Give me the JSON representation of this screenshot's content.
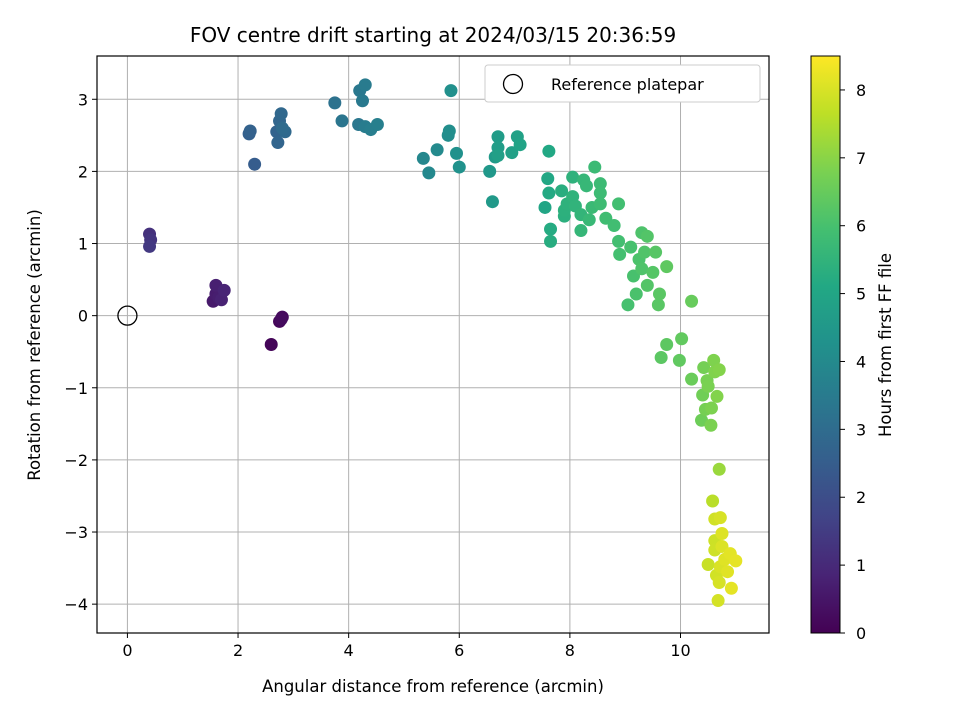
{
  "chart_data": {
    "type": "scatter",
    "title": "FOV centre drift starting at 2024/03/15 20:36:59",
    "xlabel": "Angular distance from reference (arcmin)",
    "ylabel": "Rotation from reference (arcmin)",
    "xlim": [
      -0.55,
      11.6
    ],
    "ylim": [
      -4.4,
      3.6
    ],
    "xticks": [
      0,
      2,
      4,
      6,
      8,
      10
    ],
    "yticks": [
      3,
      2,
      1,
      0,
      -1,
      -2,
      -3,
      -4
    ],
    "xtick_labels": [
      "0",
      "2",
      "4",
      "6",
      "8",
      "10"
    ],
    "ytick_labels": [
      "3",
      "2",
      "1",
      "0",
      "−1",
      "−2",
      "−3",
      "−4"
    ],
    "grid": true,
    "colormap": "viridis",
    "colorbar": {
      "label": "Hours from first FF file",
      "range": [
        0,
        8.5
      ],
      "ticks": [
        0,
        1,
        2,
        3,
        4,
        5,
        6,
        7,
        8
      ],
      "tick_labels": [
        "0",
        "1",
        "2",
        "3",
        "4",
        "5",
        "6",
        "7",
        "8"
      ]
    },
    "legend": {
      "position": "top-right",
      "entries": [
        "Reference platepar"
      ]
    },
    "reference_point": {
      "x": 0,
      "y": 0
    },
    "points": [
      [
        2.6,
        -0.4,
        0.1
      ],
      [
        2.75,
        -0.08,
        0.15
      ],
      [
        2.8,
        -0.02,
        0.2
      ],
      [
        2.78,
        -0.05,
        0.25
      ],
      [
        1.55,
        0.2,
        0.6
      ],
      [
        1.6,
        0.3,
        0.65
      ],
      [
        1.65,
        0.25,
        0.7
      ],
      [
        1.6,
        0.42,
        0.75
      ],
      [
        1.7,
        0.22,
        0.8
      ],
      [
        1.75,
        0.35,
        0.85
      ],
      [
        0.4,
        1.13,
        1.2
      ],
      [
        0.42,
        1.05,
        1.3
      ],
      [
        0.4,
        0.96,
        1.4
      ],
      [
        2.3,
        2.1,
        2.5
      ],
      [
        2.2,
        2.52,
        2.6
      ],
      [
        2.22,
        2.56,
        2.65
      ],
      [
        2.7,
        2.55,
        2.7
      ],
      [
        2.72,
        2.4,
        2.75
      ],
      [
        2.75,
        2.7,
        2.8
      ],
      [
        2.78,
        2.8,
        2.85
      ],
      [
        2.85,
        2.55,
        2.9
      ],
      [
        2.8,
        2.6,
        2.95
      ],
      [
        3.75,
        2.95,
        3.2
      ],
      [
        3.88,
        2.7,
        3.3
      ],
      [
        4.18,
        2.65,
        3.35
      ],
      [
        4.2,
        3.12,
        3.4
      ],
      [
        4.25,
        2.98,
        3.45
      ],
      [
        4.3,
        3.2,
        3.5
      ],
      [
        4.3,
        2.62,
        3.55
      ],
      [
        4.4,
        2.58,
        3.6
      ],
      [
        4.52,
        2.65,
        3.65
      ],
      [
        5.35,
        2.18,
        3.9
      ],
      [
        5.45,
        1.98,
        3.95
      ],
      [
        5.6,
        2.3,
        4.0
      ],
      [
        5.8,
        2.5,
        4.1
      ],
      [
        5.82,
        2.56,
        4.15
      ],
      [
        5.85,
        3.12,
        4.2
      ],
      [
        5.95,
        2.25,
        4.25
      ],
      [
        6.0,
        2.06,
        4.3
      ],
      [
        6.55,
        2.0,
        4.5
      ],
      [
        6.6,
        1.58,
        4.55
      ],
      [
        6.65,
        2.2,
        4.6
      ],
      [
        6.7,
        2.48,
        4.65
      ],
      [
        6.7,
        2.33,
        4.7
      ],
      [
        6.7,
        2.22,
        4.75
      ],
      [
        6.95,
        2.26,
        4.8
      ],
      [
        7.05,
        2.48,
        4.85
      ],
      [
        7.1,
        2.37,
        4.9
      ],
      [
        7.55,
        1.5,
        5.0
      ],
      [
        7.6,
        1.9,
        5.05
      ],
      [
        7.62,
        2.28,
        5.1
      ],
      [
        7.62,
        1.7,
        5.15
      ],
      [
        7.65,
        1.2,
        5.2
      ],
      [
        7.65,
        1.03,
        5.25
      ],
      [
        7.85,
        1.73,
        5.3
      ],
      [
        7.9,
        1.38,
        5.35
      ],
      [
        7.9,
        1.46,
        5.38
      ],
      [
        7.95,
        1.55,
        5.42
      ],
      [
        8.05,
        1.92,
        5.45
      ],
      [
        8.05,
        1.65,
        5.48
      ],
      [
        8.1,
        1.52,
        5.5
      ],
      [
        8.2,
        1.4,
        5.55
      ],
      [
        8.2,
        1.18,
        5.6
      ],
      [
        8.25,
        1.88,
        5.62
      ],
      [
        8.3,
        1.8,
        5.65
      ],
      [
        8.35,
        1.33,
        5.68
      ],
      [
        8.4,
        1.5,
        5.72
      ],
      [
        8.45,
        2.06,
        5.75
      ],
      [
        8.55,
        1.83,
        5.78
      ],
      [
        8.55,
        1.7,
        5.8
      ],
      [
        8.55,
        1.55,
        5.82
      ],
      [
        8.65,
        1.35,
        5.85
      ],
      [
        8.8,
        1.25,
        5.88
      ],
      [
        8.88,
        1.55,
        5.9
      ],
      [
        8.88,
        1.03,
        5.92
      ],
      [
        8.9,
        0.85,
        5.95
      ],
      [
        9.05,
        0.15,
        5.98
      ],
      [
        9.1,
        0.95,
        6.0
      ],
      [
        9.15,
        0.55,
        6.02
      ],
      [
        9.2,
        0.3,
        6.05
      ],
      [
        9.25,
        0.78,
        6.08
      ],
      [
        9.3,
        1.15,
        6.1
      ],
      [
        9.3,
        0.65,
        6.12
      ],
      [
        9.35,
        0.88,
        6.15
      ],
      [
        9.4,
        1.1,
        6.18
      ],
      [
        9.4,
        0.42,
        6.2
      ],
      [
        9.5,
        0.6,
        6.22
      ],
      [
        9.55,
        0.88,
        6.25
      ],
      [
        9.6,
        0.15,
        6.28
      ],
      [
        9.62,
        0.3,
        6.3
      ],
      [
        9.65,
        -0.58,
        6.32
      ],
      [
        9.75,
        -0.4,
        6.35
      ],
      [
        9.75,
        0.68,
        6.38
      ],
      [
        9.98,
        -0.62,
        6.4
      ],
      [
        10.02,
        -0.32,
        6.42
      ],
      [
        10.2,
        0.2,
        6.5
      ],
      [
        10.2,
        -0.88,
        6.55
      ],
      [
        10.38,
        -1.45,
        6.6
      ],
      [
        10.4,
        -1.1,
        6.65
      ],
      [
        10.42,
        -0.72,
        6.7
      ],
      [
        10.45,
        -1.3,
        6.72
      ],
      [
        10.48,
        -0.9,
        6.75
      ],
      [
        10.5,
        -0.98,
        6.78
      ],
      [
        10.55,
        -1.52,
        6.8
      ],
      [
        10.56,
        -1.28,
        6.82
      ],
      [
        10.6,
        -0.62,
        6.85
      ],
      [
        10.62,
        -0.78,
        6.88
      ],
      [
        10.66,
        -1.12,
        6.9
      ],
      [
        10.7,
        -0.75,
        6.92
      ],
      [
        10.7,
        -2.13,
        7.2
      ],
      [
        10.58,
        -2.57,
        7.6
      ],
      [
        10.5,
        -3.45,
        7.8
      ],
      [
        10.62,
        -3.12,
        7.85
      ],
      [
        10.62,
        -3.25,
        7.88
      ],
      [
        10.62,
        -2.82,
        7.9
      ],
      [
        10.65,
        -3.6,
        7.92
      ],
      [
        10.68,
        -3.95,
        7.95
      ],
      [
        10.7,
        -3.7,
        7.98
      ],
      [
        10.72,
        -2.8,
        8.0
      ],
      [
        10.72,
        -3.48,
        8.02
      ],
      [
        10.75,
        -3.2,
        8.05
      ],
      [
        10.75,
        -3.02,
        8.08
      ],
      [
        10.8,
        -3.38,
        8.1
      ],
      [
        10.85,
        -3.55,
        8.12
      ],
      [
        10.9,
        -3.3,
        8.15
      ],
      [
        10.92,
        -3.78,
        8.18
      ],
      [
        11.0,
        -3.4,
        8.2
      ]
    ]
  }
}
